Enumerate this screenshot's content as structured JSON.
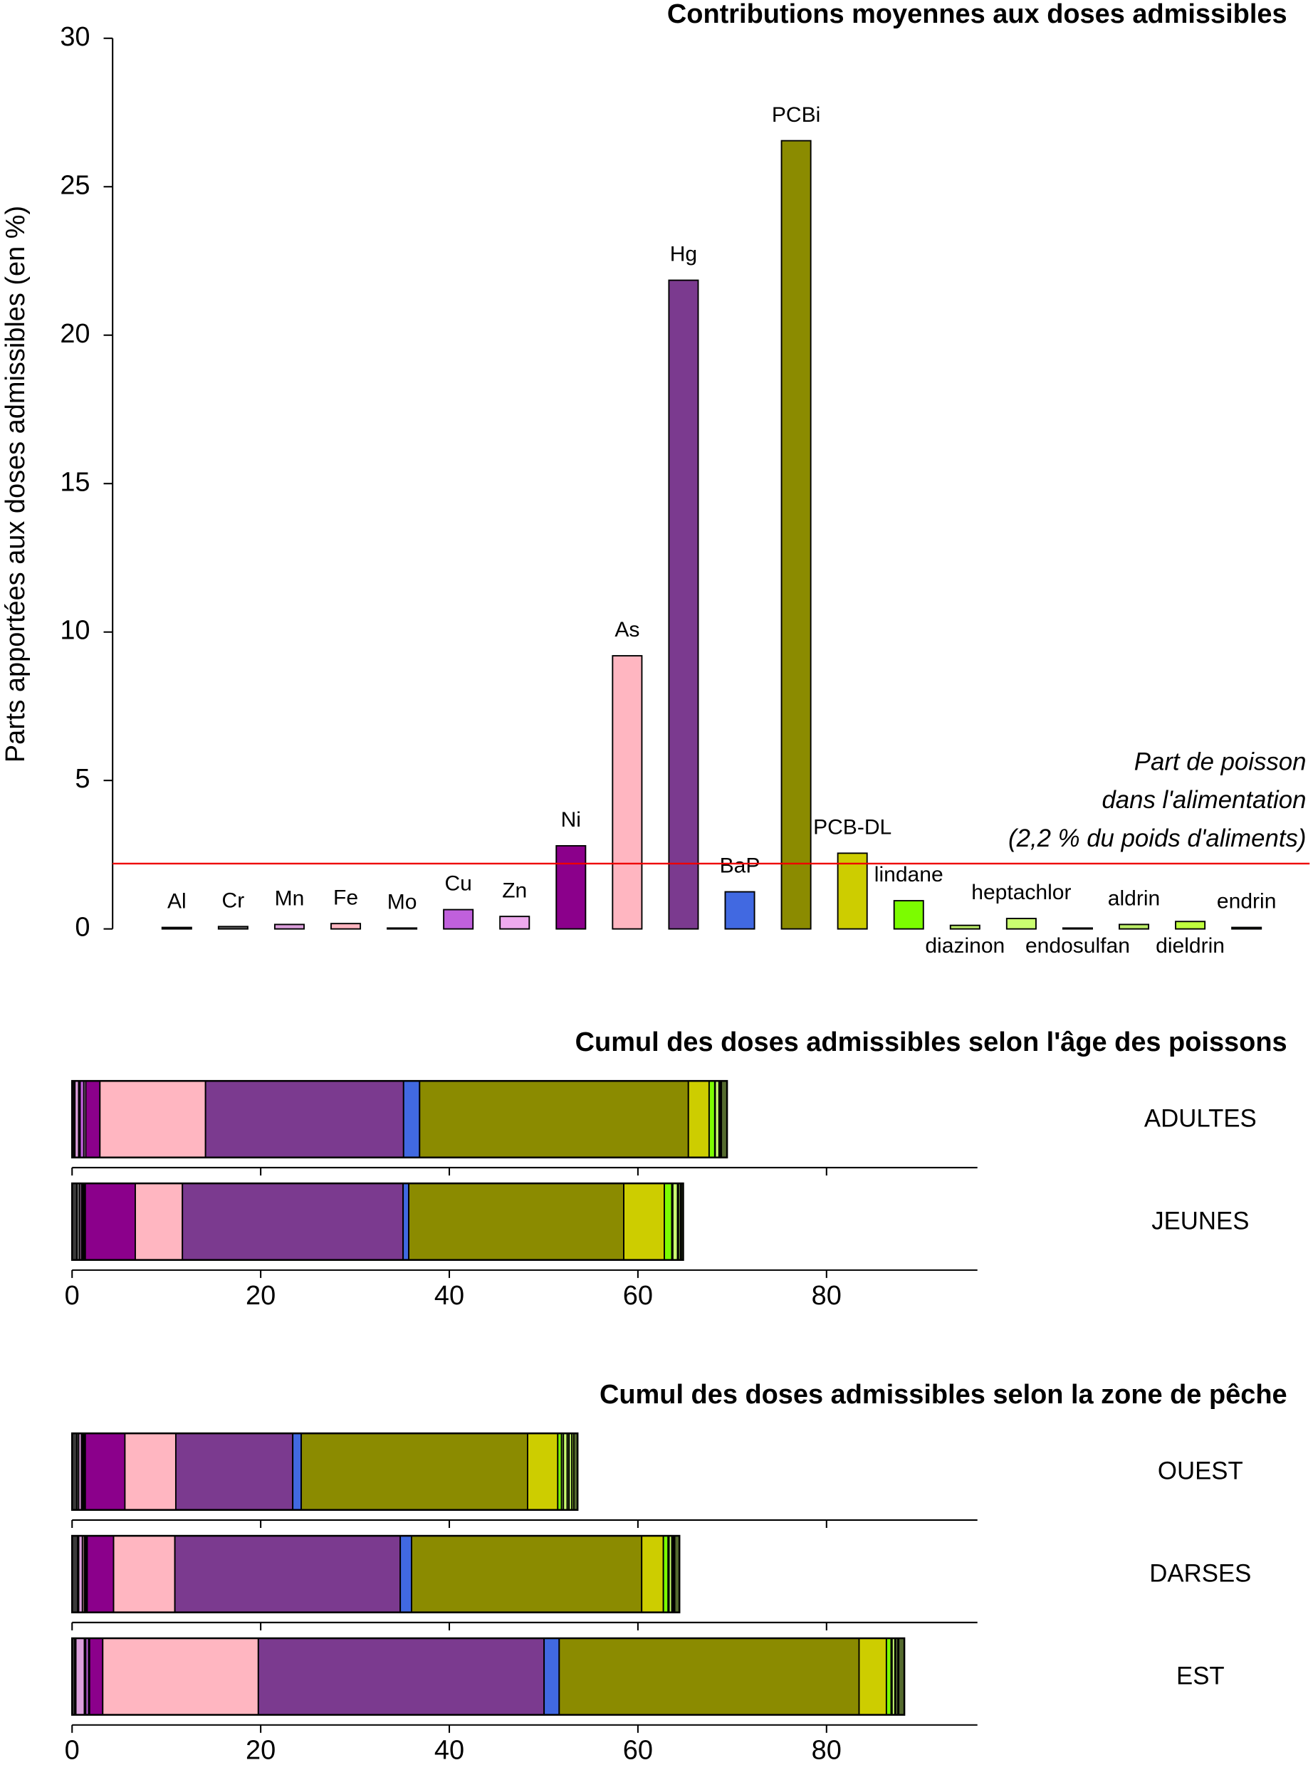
{
  "chart_data": [
    {
      "type": "bar",
      "title": "Contributions moyennes aux doses admissibles",
      "ylabel": "Parts apportées aux doses admissibles (en %)",
      "categories": [
        "Al",
        "Cr",
        "Mn",
        "Fe",
        "Mo",
        "Cu",
        "Zn",
        "Ni",
        "As",
        "Hg",
        "BaP",
        "PCBi",
        "PCB-DL",
        "lindane",
        "diazinon",
        "heptachlor",
        "endosulfan",
        "aldrin",
        "dieldrin",
        "endrin"
      ],
      "values": [
        0.05,
        0.08,
        0.15,
        0.18,
        0.03,
        0.65,
        0.42,
        2.8,
        9.2,
        21.85,
        1.25,
        26.55,
        2.55,
        0.95,
        0.12,
        0.35,
        0.03,
        0.15,
        0.25,
        0.05
      ],
      "colors": [
        "#3a3a3a",
        "#6a6a6a",
        "#dda0dd",
        "#ffb6c1",
        "#888888",
        "#c060dc",
        "#eeaaee",
        "#8b008b",
        "#ffb6c1",
        "#7b3a8f",
        "#4169e1",
        "#8b8b00",
        "#cdcd00",
        "#7cfc00",
        "#bcee68",
        "#caff70",
        "#6e8b3d",
        "#bcee68",
        "#c0ff3e",
        "#556b2f"
      ],
      "ylim": [
        0,
        30
      ],
      "yticks": [
        0,
        5,
        10,
        15,
        20,
        25,
        30
      ],
      "hline": 2.2,
      "hline_color": "#ee0000",
      "annotation": [
        "Part de poisson",
        "dans l'alimentation",
        "(2,2 % du poids d'aliments)"
      ]
    },
    {
      "type": "stacked-barh",
      "title": "Cumul des doses admissibles selon l'âge des poissons",
      "series": [
        {
          "name": "ADULTES",
          "values": [
            0.2,
            0.1,
            0.4,
            0.1,
            0.05,
            0.4,
            0.2,
            1.5,
            11.2,
            21.0,
            1.7,
            28.5,
            2.2,
            0.6,
            0.05,
            0.4,
            0.05,
            0.1,
            0.1,
            0.6
          ]
        },
        {
          "name": "JEUNES",
          "values": [
            0.5,
            0.3,
            0.2,
            0.1,
            0.1,
            0.1,
            0.1,
            5.3,
            5.0,
            23.4,
            0.6,
            22.8,
            4.3,
            0.8,
            0.1,
            0.5,
            0.1,
            0.2,
            0.1,
            0.2
          ]
        }
      ],
      "xlim": [
        0,
        96
      ],
      "xticks": [
        0,
        20,
        40,
        60,
        80
      ]
    },
    {
      "type": "stacked-barh",
      "title": "Cumul des doses admissibles selon la zone de pêche",
      "series": [
        {
          "name": "OUEST",
          "values": [
            0.5,
            0.2,
            0.3,
            0.1,
            0.1,
            0.1,
            0.1,
            4.2,
            5.4,
            12.4,
            0.9,
            24.0,
            3.2,
            0.4,
            0.2,
            0.4,
            0.2,
            0.3,
            0.2,
            0.4
          ]
        },
        {
          "name": "DARSES",
          "values": [
            0.6,
            0.1,
            0.4,
            0.2,
            0.1,
            0.1,
            0.1,
            2.8,
            6.5,
            23.9,
            1.2,
            24.4,
            2.3,
            0.5,
            0.1,
            0.3,
            0.1,
            0.1,
            0.1,
            0.5
          ]
        },
        {
          "name": "EST",
          "values": [
            0.3,
            0.1,
            0.9,
            0.1,
            0.05,
            0.3,
            0.1,
            1.4,
            16.5,
            30.3,
            1.6,
            31.8,
            2.9,
            0.5,
            0.1,
            0.3,
            0.1,
            0.2,
            0.1,
            0.6
          ]
        }
      ],
      "xlim": [
        0,
        96
      ],
      "xticks": [
        0,
        20,
        40,
        60,
        80
      ]
    }
  ]
}
